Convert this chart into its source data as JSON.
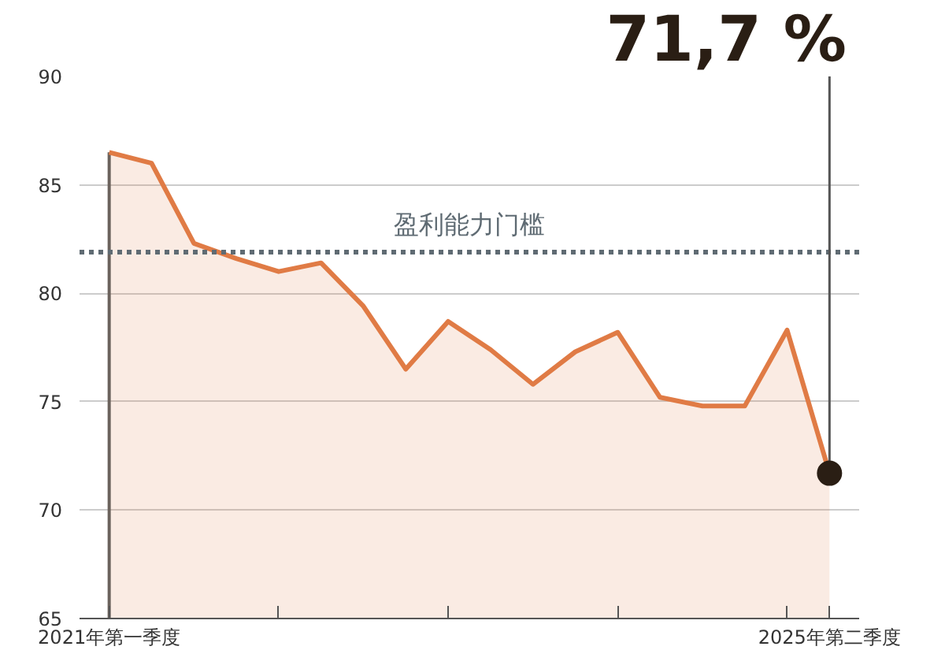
{
  "chart_data": {
    "type": "area",
    "categories": [
      "2021年第一季度",
      null,
      null,
      null,
      null,
      null,
      null,
      null,
      null,
      null,
      null,
      null,
      null,
      null,
      null,
      null,
      null,
      "2025年第二季度"
    ],
    "series": [
      {
        "color": "#e07b45",
        "values": [
          86.5,
          86.0,
          82.3,
          81.6,
          81.0,
          81.4,
          79.4,
          76.5,
          78.7,
          77.4,
          75.8,
          77.3,
          78.2,
          75.2,
          74.8,
          74.8,
          78.3,
          71.7
        ]
      }
    ],
    "ylim": [
      65,
      90
    ],
    "yticks": [
      65,
      70,
      75,
      80,
      85,
      90
    ],
    "grid": "y",
    "ref_lines": [
      {
        "axis": "y",
        "value": 81.9,
        "label": "盈利能力门槛",
        "color": "#5f6b73",
        "line_style": "dotted"
      }
    ],
    "annotations": [
      {
        "text": "71,7 %",
        "x": "2025年第二季度",
        "y": 71.7
      }
    ]
  }
}
